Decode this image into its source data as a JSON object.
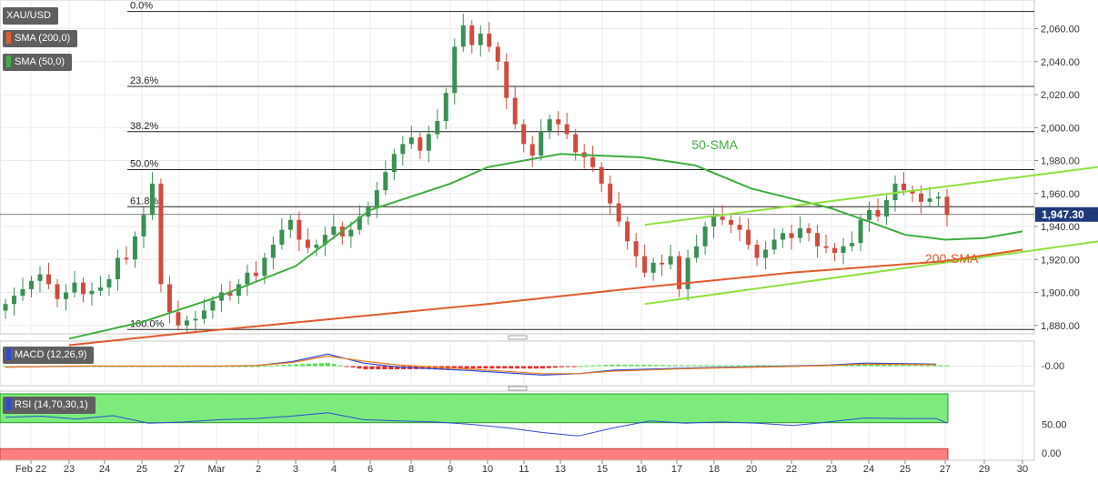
{
  "chart_data": {
    "type": "candlestick",
    "title": "XAU/USD",
    "x_ticks": [
      "Feb 22",
      "23",
      "24",
      "25",
      "27",
      "Mar",
      "2",
      "3",
      "4",
      "6",
      "8",
      "9",
      "10",
      "11",
      "13",
      "15",
      "16",
      "17",
      "18",
      "20",
      "22",
      "23",
      "24",
      "25",
      "27",
      "29",
      "30"
    ],
    "main_panel": {
      "ylim": [
        1870,
        2070
      ],
      "y_ticks": [
        "2,060.00",
        "2,040.00",
        "2,020.00",
        "2,000.00",
        "1,980.00",
        "1,960.00",
        "1,940.00",
        "1,920.00",
        "1,900.00",
        "1,880.00"
      ],
      "last_price": "1,947.30",
      "fib_levels": [
        {
          "label": "0.0%",
          "price": 2070.4
        },
        {
          "label": "23.6%",
          "price": 2025.0
        },
        {
          "label": "38.2%",
          "price": 1997.5
        },
        {
          "label": "50.0%",
          "price": 1974.5
        },
        {
          "label": "61.8%",
          "price": 1952.0
        },
        {
          "label": "100.0%",
          "price": 1877.5
        }
      ],
      "candle_closes": [
        1893,
        1898,
        1902,
        1907,
        1911,
        1905,
        1896,
        1900,
        1906,
        1899,
        1901,
        1903,
        1908,
        1921,
        1920,
        1934,
        1947,
        1966,
        1905,
        1888,
        1880,
        1883,
        1884,
        1889,
        1895,
        1900,
        1898,
        1905,
        1912,
        1910,
        1921,
        1929,
        1938,
        1944,
        1932,
        1927,
        1929,
        1935,
        1940,
        1934,
        1938,
        1946,
        1952,
        1962,
        1973,
        1984,
        1990,
        1994,
        1986,
        1996,
        2004,
        2021,
        2049,
        2062,
        2050,
        2057,
        2049,
        2040,
        2018,
        2002,
        1990,
        1983,
        1998,
        2005,
        2002,
        1996,
        1985,
        1982,
        1976,
        1966,
        1954,
        1943,
        1931,
        1922,
        1912,
        1918,
        1917,
        1922,
        1902,
        1921,
        1928,
        1940,
        1946,
        1944,
        1941,
        1938,
        1929,
        1921,
        1926,
        1932,
        1936,
        1933,
        1939,
        1936,
        1928,
        1927,
        1924,
        1928,
        1930,
        1944,
        1950,
        1946,
        1956,
        1966,
        1962,
        1960,
        1955,
        1957,
        1958,
        1947
      ]
    },
    "series": [
      {
        "name": "SMA (200,0)",
        "color": "#e05a2c",
        "points": [
          [
            1,
            1868
          ],
          [
            4,
            1875
          ],
          [
            8,
            1884
          ],
          [
            12,
            1893
          ],
          [
            16,
            1903
          ],
          [
            20,
            1912
          ],
          [
            24,
            1919
          ],
          [
            26,
            1926
          ]
        ]
      },
      {
        "name": "SMA (50,0)",
        "color": "#3fad3f",
        "points": [
          [
            1,
            1872
          ],
          [
            3,
            1882
          ],
          [
            5,
            1897
          ],
          [
            7,
            1916
          ],
          [
            9,
            1950
          ],
          [
            11,
            1966
          ],
          [
            12,
            1976
          ],
          [
            14,
            1984
          ],
          [
            16,
            1982
          ],
          [
            17.5,
            1977
          ],
          [
            19,
            1963
          ],
          [
            21,
            1951
          ],
          [
            22,
            1943
          ],
          [
            23,
            1935
          ],
          [
            24,
            1932
          ],
          [
            25,
            1933
          ],
          [
            26,
            1937
          ]
        ]
      }
    ],
    "trend_lines": [
      {
        "from": [
          16.1,
          1941
        ],
        "to": [
          28.3,
          1977
        ],
        "color": "#8fe03a"
      },
      {
        "from": [
          16.1,
          1893
        ],
        "to": [
          28.3,
          1932
        ],
        "color": "#8fe03a"
      }
    ],
    "annotations": [
      {
        "text": "50-SMA",
        "x": 17.4,
        "y": 1987,
        "color": "#3fad3f"
      },
      {
        "text": "200-SMA",
        "x": 23.5,
        "y": 1918,
        "color": "#e05a2c"
      }
    ],
    "macd": {
      "label": "MACD (12,26,9)",
      "y_tick": "-0.00",
      "macd_points": [
        [
          0,
          -2
        ],
        [
          2,
          0
        ],
        [
          4,
          0
        ],
        [
          6,
          0
        ],
        [
          7,
          1
        ],
        [
          8,
          9
        ],
        [
          9,
          24
        ],
        [
          10,
          6
        ],
        [
          11,
          -2
        ],
        [
          13,
          -9
        ],
        [
          15,
          -18
        ],
        [
          16,
          -15
        ],
        [
          17,
          -8
        ],
        [
          19,
          -4
        ],
        [
          21,
          -1
        ],
        [
          23,
          2
        ],
        [
          24,
          6
        ],
        [
          26,
          4
        ]
      ],
      "signal_points": [
        [
          0,
          -2
        ],
        [
          2,
          0
        ],
        [
          4,
          0
        ],
        [
          6,
          0
        ],
        [
          7,
          1
        ],
        [
          8,
          7
        ],
        [
          9,
          20
        ],
        [
          10,
          10
        ],
        [
          11,
          2
        ],
        [
          13,
          -6
        ],
        [
          15,
          -15
        ],
        [
          16,
          -15
        ],
        [
          17,
          -10
        ],
        [
          19,
          -5
        ],
        [
          21,
          -2
        ],
        [
          23,
          1
        ],
        [
          24,
          4
        ],
        [
          26,
          3
        ]
      ]
    },
    "rsi": {
      "label": "RSI (14,70,30,1)",
      "y_ticks": [
        "50.00",
        "0.00"
      ],
      "overbought": 70,
      "oversold": 30,
      "points": [
        [
          0,
          62
        ],
        [
          1,
          64
        ],
        [
          2,
          59
        ],
        [
          3,
          65
        ],
        [
          4,
          52
        ],
        [
          5,
          54
        ],
        [
          6,
          58
        ],
        [
          7,
          60
        ],
        [
          8,
          64
        ],
        [
          9,
          70
        ],
        [
          10,
          58
        ],
        [
          11,
          56
        ],
        [
          12,
          54
        ],
        [
          13,
          50
        ],
        [
          14,
          44
        ],
        [
          15,
          36
        ],
        [
          16,
          30
        ],
        [
          17,
          44
        ],
        [
          18,
          56
        ],
        [
          19,
          52
        ],
        [
          20,
          54
        ],
        [
          21,
          52
        ],
        [
          22,
          48
        ],
        [
          23,
          54
        ],
        [
          24,
          61
        ],
        [
          25,
          60
        ],
        [
          26,
          60
        ],
        [
          26.3,
          52
        ]
      ]
    }
  },
  "legend": {
    "symbol": "XAU/USD",
    "sma200": "SMA (200,0)",
    "sma50": "SMA (50,0)",
    "sma200_color": "#e05a2c",
    "sma50_color": "#3fad3f"
  }
}
